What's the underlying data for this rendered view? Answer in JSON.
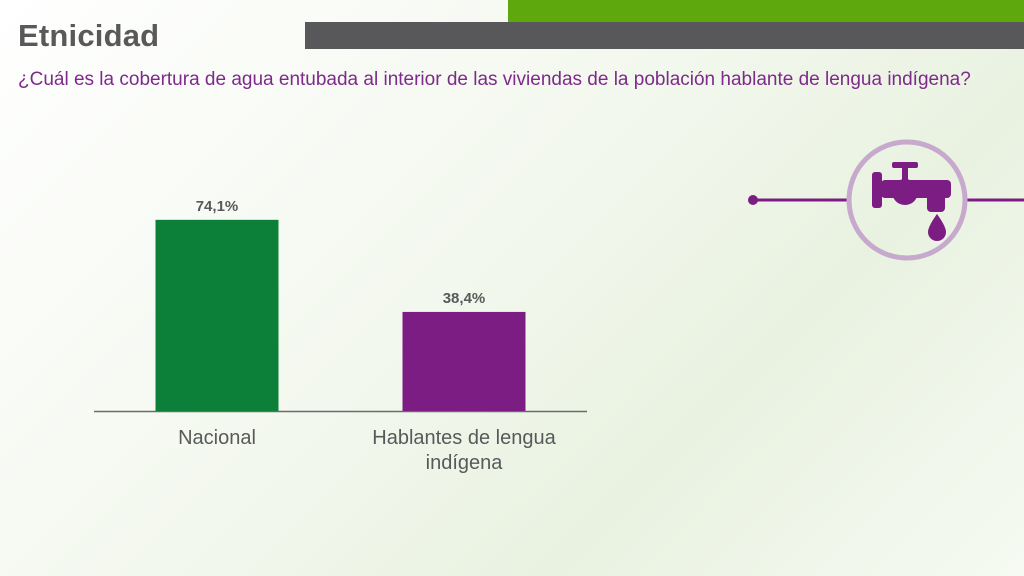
{
  "header": {
    "title": "Etnicidad",
    "question": "¿Cuál es la cobertura de agua entubada al interior de las viviendas de la población hablante de lengua indígena?"
  },
  "colors": {
    "accent_green": "#5ea70c",
    "header_gray": "#58585a",
    "title_gray": "#595959",
    "question_purple": "#7d2a8a",
    "bar_national": "#0c8038",
    "bar_indigenous": "#7b1d83",
    "icon_purple": "#7b1d83",
    "icon_ring": "#c6a9cc"
  },
  "icon": {
    "name": "water-faucet-icon"
  },
  "chart_data": {
    "type": "bar",
    "categories": [
      "Nacional",
      "Hablantes de lengua indígena"
    ],
    "category_lines": [
      [
        "Nacional"
      ],
      [
        "Hablantes de lengua",
        "indígena"
      ]
    ],
    "values": [
      74.1,
      38.4
    ],
    "data_labels": [
      "74,1%",
      "38,4%"
    ],
    "bar_colors": [
      "#0c8038",
      "#7b1d83"
    ],
    "ylim": [
      0,
      100
    ],
    "grid": false,
    "legend": "none"
  }
}
